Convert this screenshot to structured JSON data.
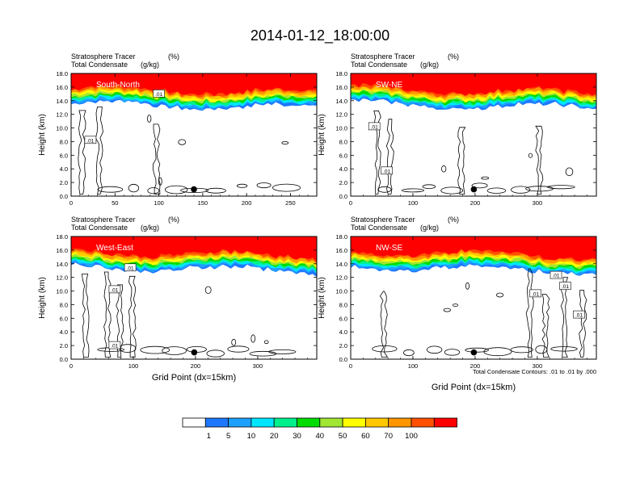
{
  "title": "2014-01-12_18:00:00",
  "header_line1_left": "Stratosphere Tracer",
  "header_line1_unit": "(%)",
  "header_line2_left": "Total Condensate",
  "header_line2_unit": "(g/kg)",
  "ylabel": "Height (km)",
  "xlabel": "Grid Point (dx=15km)",
  "footnote": "Total Condensate Contours: .01 to .01 by .000",
  "colors": {
    "c0": "#ffffff",
    "c1": "#1e78ff",
    "c2": "#1ea0ff",
    "c3": "#00e6ff",
    "c4": "#00f08c",
    "c5": "#00dc00",
    "c6": "#a0e632",
    "c7": "#ffff00",
    "c8": "#ffc800",
    "c9": "#ff9600",
    "c10": "#ff5000",
    "c11": "#ff0000"
  },
  "chart_data": [
    {
      "type": "heatmap",
      "label": "South-North",
      "xlim": [
        0,
        280
      ],
      "xticks": [
        0,
        50,
        100,
        150,
        200,
        250
      ],
      "ylim": [
        0,
        18
      ],
      "yticks": [
        "0.0",
        "2.0",
        "4.0",
        "6.0",
        "8.0",
        "10.0",
        "12.0",
        "14.0",
        "16.0",
        "18.0"
      ],
      "contour_labels": [
        {
          "text": ".01",
          "x": 22,
          "y": 8.2
        },
        {
          "text": ".01",
          "x": 100,
          "y": 15.0
        }
      ],
      "marker": {
        "x": 140,
        "y": 1.0
      }
    },
    {
      "type": "heatmap",
      "label": "SW-NE",
      "xlim": [
        0,
        395
      ],
      "xticks": [
        0,
        100,
        200,
        300
      ],
      "ylim": [
        0,
        18
      ],
      "yticks": [
        "0.0",
        "2.0",
        "4.0",
        "6.0",
        "8.0",
        "10.0",
        "12.0",
        "14.0",
        "16.0",
        "18.0"
      ],
      "contour_labels": [
        {
          "text": ".01",
          "x": 38,
          "y": 10.2
        },
        {
          "text": ".01",
          "x": 58,
          "y": 3.7
        }
      ],
      "marker": {
        "x": 198,
        "y": 1.0
      }
    },
    {
      "type": "heatmap",
      "label": "West-East",
      "xlim": [
        0,
        395
      ],
      "xticks": [
        0,
        100,
        200,
        300
      ],
      "ylim": [
        0,
        18
      ],
      "yticks": [
        "0.0",
        "2.0",
        "4.0",
        "6.0",
        "8.0",
        "10.0",
        "12.0",
        "14.0",
        "16.0",
        "18.0"
      ],
      "contour_labels": [
        {
          "text": ".01",
          "x": 95,
          "y": 13.4
        },
        {
          "text": ".01",
          "x": 70,
          "y": 10.2
        },
        {
          "text": ".01",
          "x": 70,
          "y": 2.0
        }
      ],
      "marker": {
        "x": 198,
        "y": 1.0
      }
    },
    {
      "type": "heatmap",
      "label": "NW-SE",
      "xlim": [
        0,
        395
      ],
      "xticks": [
        0,
        100,
        200,
        300
      ],
      "ylim": [
        0,
        18
      ],
      "yticks": [
        "0.0",
        "2.0",
        "4.0",
        "6.0",
        "8.0",
        "10.0",
        "12.0",
        "14.0",
        "16.0",
        "18.0"
      ],
      "contour_labels": [
        {
          "text": ".01",
          "x": 297,
          "y": 9.6
        },
        {
          "text": ".01",
          "x": 330,
          "y": 12.3
        },
        {
          "text": ".01",
          "x": 345,
          "y": 10.7
        },
        {
          "text": ".01",
          "x": 367,
          "y": 6.5
        }
      ],
      "marker": {
        "x": 198,
        "y": 1.0
      }
    }
  ],
  "colorbar": {
    "labels": [
      "1",
      "5",
      "10",
      "20",
      "30",
      "40",
      "50",
      "60",
      "70",
      "100"
    ]
  }
}
